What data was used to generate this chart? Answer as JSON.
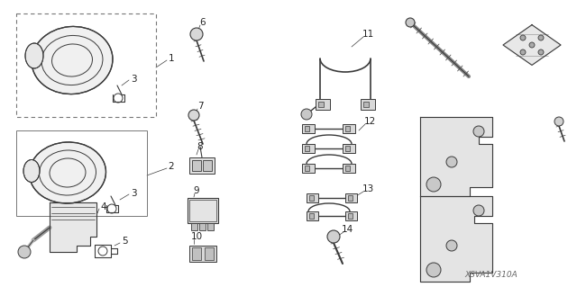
{
  "background_color": "#ffffff",
  "watermark": "XSVA1V310A",
  "line_color": "#3a3a3a",
  "label_color": "#222222",
  "font_size_label": 7.5,
  "font_size_watermark": 6.5,
  "figsize": [
    6.4,
    3.19
  ],
  "dpi": 100
}
